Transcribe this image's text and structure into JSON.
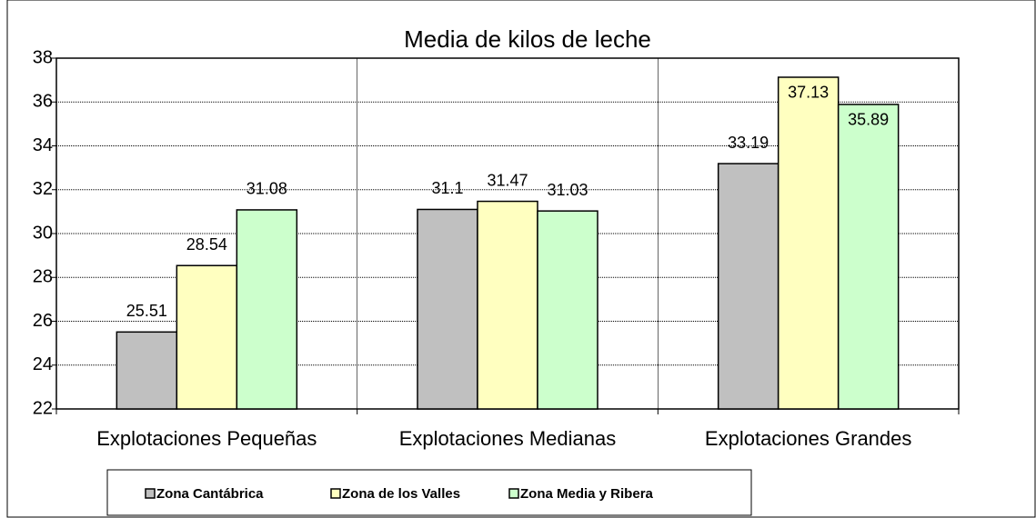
{
  "chart_data": {
    "type": "bar",
    "title": "Media de kilos de leche",
    "categories": [
      "Explotaciones Pequeñas",
      "Explotaciones Medianas",
      "Explotaciones Grandes"
    ],
    "series": [
      {
        "name": "Zona Cantábrica",
        "color": "#c0c0c0",
        "values": [
          25.51,
          31.1,
          33.19
        ]
      },
      {
        "name": "Zona de los Valles",
        "color": "#ffffc0",
        "values": [
          28.54,
          31.47,
          37.13
        ]
      },
      {
        "name": "Zona Media y Ribera",
        "color": "#ccffcc",
        "values": [
          31.08,
          31.03,
          35.89
        ]
      }
    ],
    "ylim": [
      22,
      38
    ],
    "yticks": [
      22,
      24,
      26,
      28,
      30,
      32,
      34,
      36,
      38
    ],
    "grid": true,
    "legend": "bottom"
  }
}
